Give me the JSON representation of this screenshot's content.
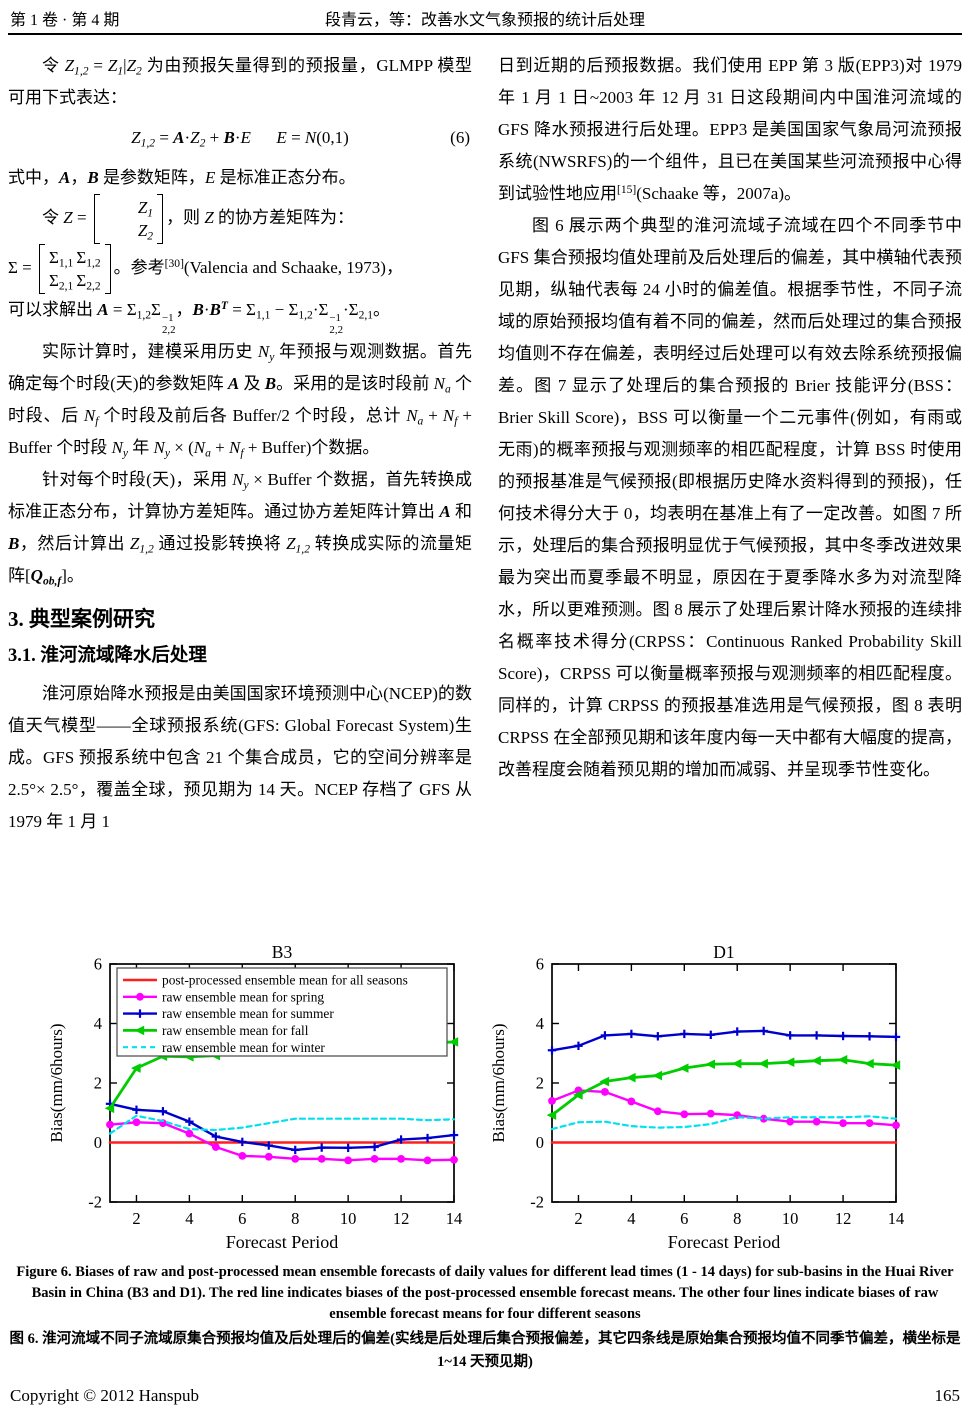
{
  "header": {
    "issue": "第 1 卷 · 第 4 期",
    "running_title": "段青云，等：改善水文气象预报的统计后处理"
  },
  "left_column": {
    "p1": [
      {
        "t": "令 "
      },
      {
        "t": "Z",
        "s": "i",
        "sub": "1,2"
      },
      {
        "t": " = "
      },
      {
        "t": "Z",
        "s": "i",
        "sub": "1"
      },
      {
        "t": "|"
      },
      {
        "t": "Z",
        "s": "i",
        "sub": "2"
      },
      {
        "t": " 为由预报矢量得到的预报量，GLMPP 模型可用下式表达："
      }
    ],
    "eq6": {
      "body": [
        {
          "t": "Z",
          "s": "i",
          "sub": "1,2"
        },
        {
          "t": " = "
        },
        {
          "t": "A",
          "s": "bi"
        },
        {
          "t": "·"
        },
        {
          "t": "Z",
          "s": "i",
          "sub": "2"
        },
        {
          "t": " + "
        },
        {
          "t": "B",
          "s": "bi"
        },
        {
          "t": "·"
        },
        {
          "t": "E",
          "s": "i"
        },
        {
          "t": "      "
        },
        {
          "t": "E",
          "s": "i"
        },
        {
          "t": " = "
        },
        {
          "t": "N",
          "s": "i"
        },
        {
          "t": "(0,1)"
        }
      ],
      "number": "(6)"
    },
    "p2": [
      {
        "t": "式中，"
      },
      {
        "t": "A",
        "s": "bi"
      },
      {
        "t": "，"
      },
      {
        "t": "B",
        "s": "bi"
      },
      {
        "t": " 是参数矩阵，"
      },
      {
        "t": "E",
        "s": "i"
      },
      {
        "t": " 是标准正态分布。"
      }
    ],
    "zline": {
      "prefix": [
        {
          "t": "令 "
        },
        {
          "t": "Z",
          "s": "i"
        },
        {
          "t": " = "
        }
      ],
      "cells": [
        [
          {
            "t": "Z",
            "s": "i",
            "sub": "1"
          }
        ],
        [
          {
            "t": "Z",
            "s": "i",
            "sub": "2"
          }
        ]
      ],
      "suffix": [
        {
          "t": "，则 "
        },
        {
          "t": "Z",
          "s": "i"
        },
        {
          "t": " 的协方差矩阵为："
        }
      ]
    },
    "sigmaline": {
      "prefix": [
        {
          "t": "Σ = "
        }
      ],
      "rows": [
        [
          [
            {
              "t": "Σ",
              "sub": "1,1"
            }
          ],
          [
            {
              "t": "Σ",
              "sub": "1,2"
            }
          ]
        ],
        [
          [
            {
              "t": "Σ",
              "sub": "2,1"
            }
          ],
          [
            {
              "t": "Σ",
              "sub": "2,2"
            }
          ]
        ]
      ],
      "suffix": [
        {
          "t": "。参考"
        },
        {
          "t": "",
          "sup": "[30]"
        },
        {
          "t": "(Valencia and Schaake, 1973)，"
        }
      ]
    },
    "p5": [
      {
        "t": "可以求解出 "
      },
      {
        "t": "A",
        "s": "bi"
      },
      {
        "t": " = "
      },
      {
        "t": "Σ",
        "sub": "1,2"
      },
      {
        "t": "Σ",
        "sub": "2,2",
        "sup": "−1"
      },
      {
        "t": "，"
      },
      {
        "t": "B",
        "s": "bi"
      },
      {
        "t": "·"
      },
      {
        "t": "B",
        "s": "bi",
        "sup": "T"
      },
      {
        "t": " = "
      },
      {
        "t": "Σ",
        "sub": "1,1"
      },
      {
        "t": " − "
      },
      {
        "t": "Σ",
        "sub": "1,2"
      },
      {
        "t": "·"
      },
      {
        "t": "Σ",
        "sub": "2,2",
        "sup": "−1"
      },
      {
        "t": "·"
      },
      {
        "t": "Σ",
        "sub": "2,1"
      },
      {
        "t": "。"
      }
    ],
    "p6": [
      {
        "t": "实际计算时，建模采用历史 "
      },
      {
        "t": "N",
        "s": "i",
        "sub": "y"
      },
      {
        "t": " 年预报与观测数据。首先确定每个时段(天)的参数矩阵 "
      },
      {
        "t": "A",
        "s": "bi"
      },
      {
        "t": " 及 "
      },
      {
        "t": "B",
        "s": "bi"
      },
      {
        "t": "。采用的是该时段前 "
      },
      {
        "t": "N",
        "s": "i",
        "sub": "a"
      },
      {
        "t": " 个时段、后 "
      },
      {
        "t": "N",
        "s": "i",
        "sub": "f"
      },
      {
        "t": " 个时段及前后各 Buffer/2 个时段，总计 "
      },
      {
        "t": "N",
        "s": "i",
        "sub": "a"
      },
      {
        "t": " + "
      },
      {
        "t": "N",
        "s": "i",
        "sub": "f"
      },
      {
        "t": " + Buffer 个时段 "
      },
      {
        "t": "N",
        "s": "i",
        "sub": "y"
      },
      {
        "t": " 年 "
      },
      {
        "t": "N",
        "s": "i",
        "sub": "y"
      },
      {
        "t": " × ("
      },
      {
        "t": "N",
        "s": "i",
        "sub": "a"
      },
      {
        "t": " + "
      },
      {
        "t": "N",
        "s": "i",
        "sub": "f"
      },
      {
        "t": " + Buffer)个数据。"
      }
    ],
    "p7": [
      {
        "t": "针对每个时段(天)，采用 "
      },
      {
        "t": "N",
        "s": "i",
        "sub": "y"
      },
      {
        "t": " × Buffer 个数据，首先转换成标准正态分布，计算协方差矩阵。通过协方差矩阵计算出 "
      },
      {
        "t": "A",
        "s": "bi"
      },
      {
        "t": " 和 "
      },
      {
        "t": "B",
        "s": "bi"
      },
      {
        "t": "，然后计算出 "
      },
      {
        "t": "Z",
        "s": "i",
        "sub": "1,2"
      },
      {
        "t": " 通过投影转换将 "
      },
      {
        "t": "Z",
        "s": "i",
        "sub": "1,2"
      },
      {
        "t": " 转换成实际的流量矩阵"
      },
      {
        "t": "["
      },
      {
        "t": "Q",
        "s": "bi",
        "sub": "ob,f"
      },
      {
        "t": "]。"
      }
    ],
    "h1": "3. 典型案例研究",
    "h2": "3.1. 淮河流域降水后处理",
    "p8": "淮河原始降水预报是由美国国家环境预测中心(NCEP)的数值天气模型——全球预报系统(GFS: Global Forecast System)生成。GFS 预报系统中包含 21 个集合成员，它的空间分辨率是 2.5°× 2.5°，覆盖全球，预见期为 14 天。NCEP 存档了 GFS 从 1979 年 1 月 1"
  },
  "right_column": {
    "p9": [
      {
        "t": "日到近期的后预报数据。我们使用 EPP 第 3 版(EPP3)对 1979 年 1 月 1 日~2003 年 12 月 31 日这段期间内中国淮河流域的 GFS 降水预报进行后处理。EPP3 是美国国家气象局河流预报系统(NWSRFS)的一个组件，且已在美国某些河流预报中心得到试验性地应用"
      },
      {
        "t": "",
        "sup": "[15]"
      },
      {
        "t": "(Schaake 等，2007a)。"
      }
    ],
    "p10": "图 6 展示两个典型的淮河流域子流域在四个不同季节中 GFS 集合预报均值处理前及后处理后的偏差，其中横轴代表预见期，纵轴代表每 24 小时的偏差值。根据季节性，不同子流域的原始预报均值有着不同的偏差，然而后处理过的集合预报均值则不存在偏差，表明经过后处理可以有效去除系统预报偏差。图 7 显示了处理后的集合预报的 Brier 技能评分(BSS：Brier Skill Score)，BSS 可以衡量一个二元事件(例如，有雨或无雨)的概率预报与观测频率的相匹配程度，计算 BSS 时使用的预报基准是气候预报(即根据历史降水资料得到的预报)，任何技术得分大于 0，均表明在基准上有了一定改善。如图 7 所示，处理后的集合预报明显优于气候预报，其中冬季改进效果最为突出而夏季最不明显，原因在于夏季降水多为对流型降水，所以更难预测。图 8 展示了处理后累计降水预报的连续排名概率技术得分(CRPSS：Continuous Ranked Probability Skill Score)，CRPSS 可以衡量概率预报与观测频率的相匹配程度。同样的，计算 CRPSS 的预报基准选用是气候预报，图 8 表明 CRPSS 在全部预见期和该年度内每一天中都有大幅度的提高，改善程度会随着预见期的增加而减弱、并呈现季节性变化。"
  },
  "chart_data": [
    {
      "type": "line",
      "title": "B3",
      "xlabel": "Forecast Period",
      "ylabel": "Bias(mm/6hours)",
      "xlim": [
        1,
        14
      ],
      "ylim": [
        -2,
        6
      ],
      "xticks": [
        2,
        4,
        6,
        8,
        10,
        12,
        14
      ],
      "yticks": [
        -2,
        0,
        2,
        4,
        6
      ],
      "grid": false,
      "legend": true,
      "legend_position": "top-left-inside",
      "x": [
        1,
        2,
        3,
        4,
        5,
        6,
        7,
        8,
        9,
        10,
        11,
        12,
        13,
        14
      ],
      "series": [
        {
          "name": "post-processed ensemble mean for all seasons",
          "color": "#ff1e1e",
          "style": "solid",
          "marker": "none",
          "width": 2.6,
          "values": [
            0,
            0,
            0,
            0,
            0,
            0,
            0,
            0,
            0,
            0,
            0,
            0,
            0,
            0
          ]
        },
        {
          "name": "raw ensemble mean for spring",
          "color": "#ff00ff",
          "style": "solid",
          "marker": "circle",
          "width": 2.4,
          "values": [
            0.6,
            0.68,
            0.65,
            0.3,
            -0.15,
            -0.45,
            -0.48,
            -0.55,
            -0.55,
            -0.6,
            -0.55,
            -0.55,
            -0.6,
            -0.58
          ]
        },
        {
          "name": "raw ensemble mean for summer",
          "color": "#0000cd",
          "style": "solid",
          "marker": "plus",
          "width": 2.4,
          "values": [
            1.3,
            1.1,
            1.05,
            0.7,
            0.2,
            0.02,
            -0.1,
            -0.25,
            -0.17,
            -0.18,
            -0.15,
            0.1,
            0.15,
            0.25
          ]
        },
        {
          "name": "raw ensemble mean for fall",
          "color": "#00cc00",
          "style": "solid",
          "marker": "triangle-left",
          "width": 2.8,
          "values": [
            1.15,
            2.5,
            2.9,
            2.88,
            2.92,
            3.3,
            3.62,
            3.55,
            3.5,
            3.55,
            3.57,
            3.45,
            3.35,
            3.38
          ]
        },
        {
          "name": "raw ensemble mean for winter",
          "color": "#00e0ee",
          "style": "dashed",
          "marker": "none",
          "width": 2.2,
          "values": [
            0.3,
            0.9,
            0.72,
            0.45,
            0.42,
            0.5,
            0.65,
            0.8,
            0.8,
            0.8,
            0.8,
            0.8,
            0.75,
            0.78
          ]
        }
      ]
    },
    {
      "type": "line",
      "title": "D1",
      "xlabel": "Forecast Period",
      "ylabel": "Bias(mm/6hours)",
      "xlim": [
        1,
        14
      ],
      "ylim": [
        -2,
        6
      ],
      "xticks": [
        2,
        4,
        6,
        8,
        10,
        12,
        14
      ],
      "yticks": [
        -2,
        0,
        2,
        4,
        6
      ],
      "grid": false,
      "legend": false,
      "x": [
        1,
        2,
        3,
        4,
        5,
        6,
        7,
        8,
        9,
        10,
        11,
        12,
        13,
        14
      ],
      "series": [
        {
          "name": "post-processed ensemble mean for all seasons",
          "color": "#ff1e1e",
          "style": "solid",
          "marker": "none",
          "width": 2.6,
          "values": [
            0,
            0,
            0,
            0,
            0,
            0,
            0,
            0,
            0,
            0,
            0,
            0,
            0,
            0
          ]
        },
        {
          "name": "raw ensemble mean for spring",
          "color": "#ff00ff",
          "style": "solid",
          "marker": "circle",
          "width": 2.4,
          "values": [
            1.4,
            1.75,
            1.7,
            1.38,
            1.05,
            0.95,
            0.97,
            0.92,
            0.8,
            0.7,
            0.7,
            0.65,
            0.65,
            0.58
          ]
        },
        {
          "name": "raw ensemble mean for summer",
          "color": "#0000cd",
          "style": "solid",
          "marker": "plus",
          "width": 2.4,
          "values": [
            3.1,
            3.25,
            3.6,
            3.65,
            3.57,
            3.65,
            3.62,
            3.73,
            3.75,
            3.6,
            3.6,
            3.58,
            3.57,
            3.55
          ]
        },
        {
          "name": "raw ensemble mean for fall",
          "color": "#00cc00",
          "style": "solid",
          "marker": "triangle-left",
          "width": 2.8,
          "values": [
            0.92,
            1.6,
            2.05,
            2.18,
            2.25,
            2.5,
            2.63,
            2.65,
            2.65,
            2.7,
            2.75,
            2.78,
            2.65,
            2.6
          ]
        },
        {
          "name": "raw ensemble mean for winter",
          "color": "#00e0ee",
          "style": "dashed",
          "marker": "none",
          "width": 2.2,
          "values": [
            0.45,
            0.68,
            0.7,
            0.55,
            0.5,
            0.52,
            0.62,
            0.85,
            0.8,
            0.85,
            0.85,
            0.85,
            0.88,
            0.8
          ]
        }
      ]
    }
  ],
  "caption": {
    "en": "Figure 6. Biases of raw and post-processed mean ensemble forecasts of daily values for different lead times (1 - 14 days) for sub-basins in the Huai River Basin in China (B3 and D1). The red line indicates biases of the post-processed ensemble forecast means. The other four lines indicate biases of raw ensemble forecast means for four different seasons",
    "zh": "图 6. 淮河流域不同子流域原集合预报均值及后处理后的偏差(实线是后处理后集合预报偏差，其它四条线是原始集合预报均值不同季节偏差，横坐标是 1~14 天预见期)"
  },
  "footer": {
    "copyright": "Copyright © 2012 Hanspub",
    "page": "165"
  }
}
